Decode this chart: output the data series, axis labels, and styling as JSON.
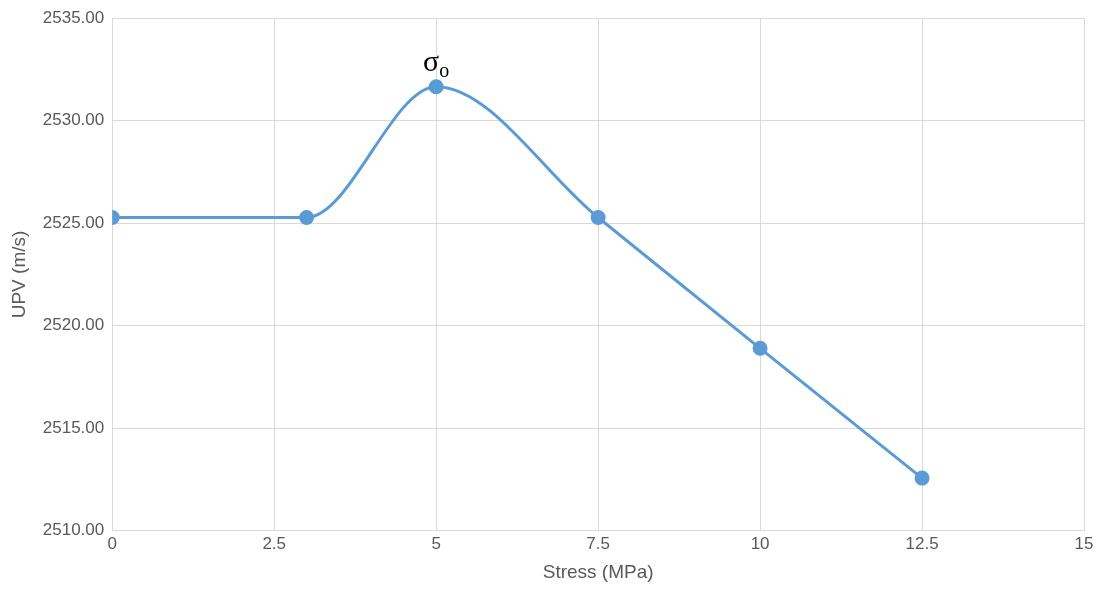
{
  "chart_data": {
    "type": "line",
    "xlabel": "Stress (MPa)",
    "ylabel": "UPV (m/s)",
    "x": [
      0,
      3,
      5,
      7.5,
      10,
      12.5
    ],
    "series": [
      {
        "color": "#5b9bd5",
        "values": [
          2525.28,
          2525.28,
          2531.66,
          2525.28,
          2518.9,
          2512.57
        ]
      }
    ],
    "xlim": [
      0,
      15
    ],
    "xticks": [
      0,
      2.5,
      5,
      7.5,
      10,
      12.5,
      15
    ],
    "ylim": [
      2510,
      2535
    ],
    "yticks": [
      {
        "value": 2510,
        "label": "2510.00"
      },
      {
        "value": 2515,
        "label": "2515.00"
      },
      {
        "value": 2520,
        "label": "2520.00"
      },
      {
        "value": 2525,
        "label": "2525.00"
      },
      {
        "value": 2530,
        "label": "2530.00"
      },
      {
        "value": 2535,
        "label": "2535.00"
      }
    ],
    "annotations": [
      {
        "text": "σ$_{o}$",
        "x": 5,
        "y": 2531.66
      }
    ],
    "grid": true,
    "legend": false,
    "marker": "circle",
    "line_style": "solid"
  }
}
